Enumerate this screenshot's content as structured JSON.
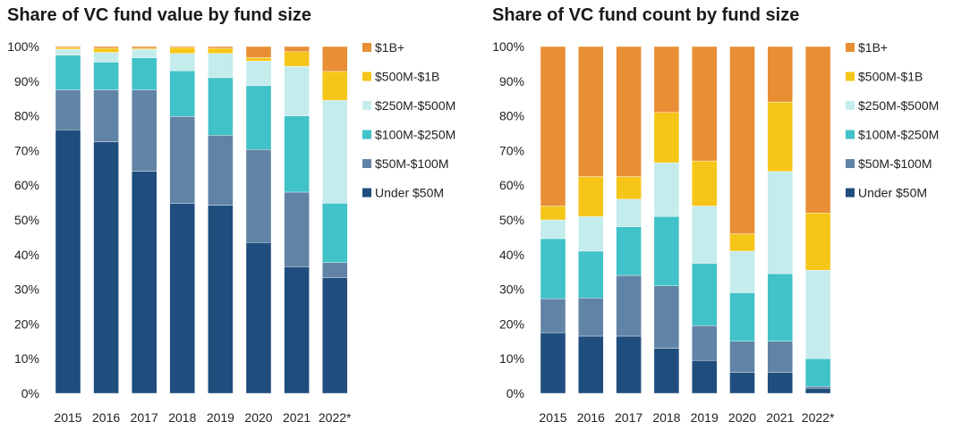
{
  "chart_data": [
    {
      "type": "bar",
      "stacked": true,
      "title": "Share of VC fund value by fund size",
      "xlabel": "",
      "ylabel": "",
      "ylim": [
        0,
        100
      ],
      "yticks": [
        "0%",
        "10%",
        "20%",
        "30%",
        "40%",
        "50%",
        "60%",
        "70%",
        "80%",
        "90%",
        "100%"
      ],
      "categories": [
        "2015",
        "2016",
        "2017",
        "2018",
        "2019",
        "2020",
        "2021",
        "2022*"
      ],
      "legend_position": "right",
      "series": [
        {
          "name": "Under $50M",
          "color": "#1f4e7e",
          "values": [
            76,
            72.5,
            64,
            54.7,
            54.2,
            43.5,
            36.5,
            33.4
          ]
        },
        {
          "name": "$50M-$100M",
          "color": "#6184a6",
          "values": [
            11.5,
            15,
            23.5,
            25.1,
            20.2,
            26.8,
            21.5,
            4.3
          ]
        },
        {
          "name": "$100M-$250M",
          "color": "#40c2c8",
          "values": [
            10,
            8,
            9.2,
            13.2,
            16.6,
            18.4,
            22,
            17.1
          ]
        },
        {
          "name": "$250M-$500M",
          "color": "#c5ecec",
          "values": [
            1.7,
            2.8,
            2.5,
            5,
            7,
            7.1,
            14.3,
            29.7
          ]
        },
        {
          "name": "$500M-$1B",
          "color": "#f5c518",
          "values": [
            0.5,
            1.2,
            0.3,
            1.7,
            1.5,
            1,
            4.2,
            8.3
          ]
        },
        {
          "name": "$1B+",
          "color": "#e88f35",
          "values": [
            0.3,
            0.5,
            0.5,
            0.3,
            0.5,
            3.2,
            1.5,
            7.2
          ]
        }
      ]
    },
    {
      "type": "bar",
      "stacked": true,
      "title": "Share of VC fund count by fund size",
      "xlabel": "",
      "ylabel": "",
      "ylim": [
        0,
        100
      ],
      "yticks": [
        "0%",
        "10%",
        "20%",
        "30%",
        "40%",
        "50%",
        "60%",
        "70%",
        "80%",
        "90%",
        "100%"
      ],
      "categories": [
        "2015",
        "2016",
        "2017",
        "2018",
        "2019",
        "2020",
        "2021",
        "2022*"
      ],
      "legend_position": "right",
      "series": [
        {
          "name": "Under $50M",
          "color": "#1f4e7e",
          "values": [
            17.5,
            16.5,
            16.5,
            13,
            9.5,
            6,
            6,
            1.5
          ]
        },
        {
          "name": "$50M-$100M",
          "color": "#6184a6",
          "values": [
            9.8,
            11,
            17.5,
            18,
            10,
            9,
            9,
            0.5
          ]
        },
        {
          "name": "$100M-$250M",
          "color": "#40c2c8",
          "values": [
            17.3,
            13.5,
            14,
            20,
            18,
            14,
            19.5,
            8
          ]
        },
        {
          "name": "$250M-$500M",
          "color": "#c5ecec",
          "values": [
            5.4,
            10,
            8,
            15.5,
            16.5,
            12,
            29.5,
            25.5
          ]
        },
        {
          "name": "$500M-$1B",
          "color": "#f5c518",
          "values": [
            4,
            11.5,
            6.5,
            14.5,
            13,
            5,
            20,
            16.5
          ]
        },
        {
          "name": "$1B+",
          "color": "#e88f35",
          "values": [
            46,
            37.5,
            37.5,
            19,
            33,
            54,
            16,
            48
          ]
        }
      ]
    }
  ]
}
